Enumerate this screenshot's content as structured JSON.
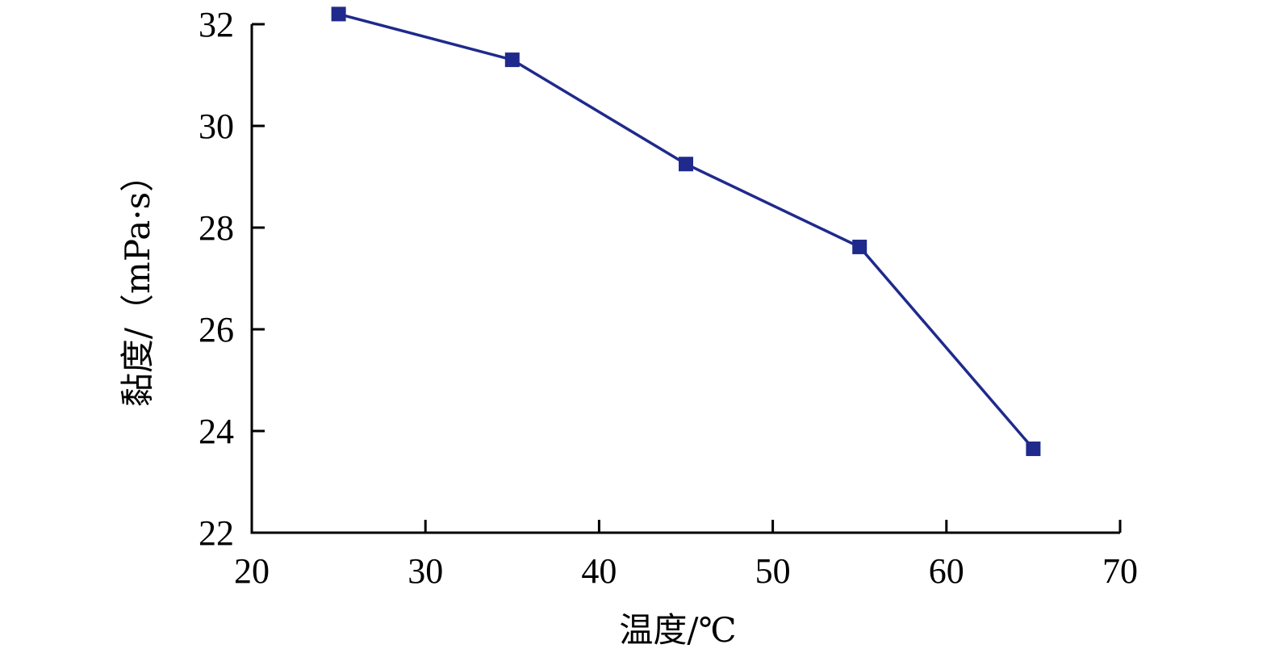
{
  "chart_data": {
    "type": "line",
    "xlabel": "温度/℃",
    "ylabel": "黏度/（mPa·s）",
    "xlim": [
      20,
      70
    ],
    "ylim": [
      22,
      32
    ],
    "xticks": [
      "20",
      "30",
      "40",
      "50",
      "60",
      "70"
    ],
    "yticks": [
      "22",
      "24",
      "26",
      "28",
      "30",
      "32"
    ],
    "grid": false,
    "series": [
      {
        "x": [
          25,
          35,
          45,
          55,
          65
        ],
        "y": [
          32.2,
          31.3,
          29.25,
          27.62,
          23.65
        ],
        "color": "#1f2a8c",
        "marker": "square"
      }
    ]
  }
}
